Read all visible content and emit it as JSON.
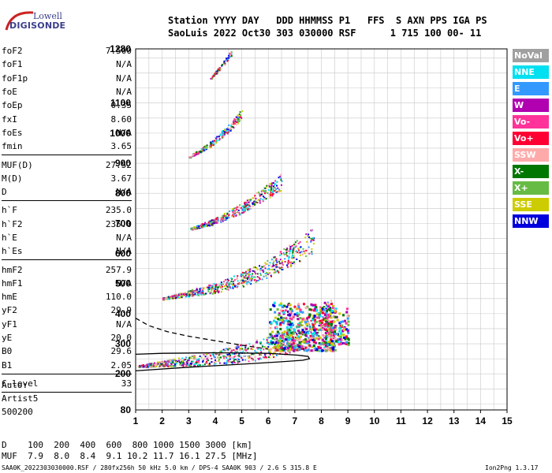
{
  "logo": {
    "line1": "Lowell",
    "line2": "DIGISONDE"
  },
  "header": {
    "line1": "Station YYYY DAY   DDD HHMMSS P1   FFS  S AXN PPS IGA PS",
    "line2": "SaoLuis 2022 Oct30 303 030000 RSF      1 715 100 00- 11"
  },
  "params": {
    "group1": [
      {
        "name": "foF2",
        "value": "7.500"
      },
      {
        "name": "foF1",
        "value": "N/A"
      },
      {
        "name": "foF1p",
        "value": "N/A"
      },
      {
        "name": "foE",
        "value": "N/A"
      },
      {
        "name": "foEp",
        "value": "0.35"
      },
      {
        "name": "fxI",
        "value": "8.60"
      },
      {
        "name": "foEs",
        "value": "N/A"
      },
      {
        "name": "fmin",
        "value": "3.65"
      }
    ],
    "group2": [
      {
        "name": "MUF(D)",
        "value": "27.52"
      },
      {
        "name": "M(D)",
        "value": "3.67"
      },
      {
        "name": "D",
        "value": "N/A"
      }
    ],
    "group3": [
      {
        "name": "h`F",
        "value": "235.0"
      },
      {
        "name": "h`F2",
        "value": "235.0"
      },
      {
        "name": "h`E",
        "value": "N/A"
      },
      {
        "name": "h`Es",
        "value": "N/A"
      }
    ],
    "group4": [
      {
        "name": "hmF2",
        "value": "257.9"
      },
      {
        "name": "hmF1",
        "value": "N/A"
      },
      {
        "name": "hmE",
        "value": "110.0"
      },
      {
        "name": "yF2",
        "value": "29.9"
      },
      {
        "name": "yF1",
        "value": "N/A"
      },
      {
        "name": "yE",
        "value": "20.0"
      },
      {
        "name": "B0",
        "value": "29.6"
      },
      {
        "name": "B1",
        "value": "2.05"
      }
    ],
    "group5": [
      {
        "name": "C-level",
        "value": "33"
      }
    ]
  },
  "auto": {
    "line1": "Auto:",
    "line2": "Artist5",
    "line3": "500200"
  },
  "legend": [
    {
      "label": "NoVal",
      "color": "#a0a0a0"
    },
    {
      "label": "NNE",
      "color": "#00e0f0"
    },
    {
      "label": "E",
      "color": "#3399ff"
    },
    {
      "label": "W",
      "color": "#b000b0"
    },
    {
      "label": "Vo-",
      "color": "#ff3399"
    },
    {
      "label": "Vo+",
      "color": "#ff0033"
    },
    {
      "label": "SSW",
      "color": "#ffaaaa"
    },
    {
      "label": "X-",
      "color": "#007700"
    },
    {
      "label": "X+",
      "color": "#66bb44"
    },
    {
      "label": "SSE",
      "color": "#cccc00"
    },
    {
      "label": "NNW",
      "color": "#0000dd"
    }
  ],
  "bottom": {
    "line1": "D    100  200  400  600  800 1000 1500 3000 [km]",
    "line2": "MUF  7.9  8.0  8.4  9.1 10.2 11.7 16.1 27.5 [MHz]"
  },
  "footer": {
    "left": "SAA0K_2022303030000.RSF / 280fx256h 50 kHz 5.0 km / DPS-4 SAA0K 903 / 2.6 S 315.8 E",
    "right": "Ion2Png 1.3.17"
  },
  "chart_data": {
    "type": "scatter",
    "x_axis": {
      "min": 1,
      "max": 15,
      "ticks": [
        1,
        2,
        3,
        4,
        5,
        6,
        7,
        8,
        9,
        10,
        11,
        12,
        13,
        14,
        15
      ]
    },
    "y_axis": {
      "min": 80,
      "max": 1280,
      "ticks": [
        80,
        200,
        300,
        400,
        500,
        600,
        700,
        800,
        900,
        1000,
        1100,
        1280
      ]
    },
    "grid": true,
    "traces": [
      {
        "name": "echo-1",
        "points": [
          [
            1.1,
            225
          ],
          [
            2,
            232
          ],
          [
            3,
            238
          ],
          [
            4,
            245
          ],
          [
            5,
            258
          ],
          [
            6,
            275
          ],
          [
            7,
            300
          ],
          [
            7.8,
            350
          ],
          [
            8.4,
            380
          ]
        ]
      },
      {
        "name": "echo-2",
        "points": [
          [
            2,
            450
          ],
          [
            3,
            465
          ],
          [
            4,
            480
          ],
          [
            5,
            505
          ],
          [
            6,
            540
          ],
          [
            7,
            590
          ],
          [
            7.7,
            630
          ]
        ]
      },
      {
        "name": "echo-3",
        "points": [
          [
            3,
            680
          ],
          [
            4,
            705
          ],
          [
            5,
            745
          ],
          [
            6,
            800
          ],
          [
            6.5,
            830
          ]
        ]
      },
      {
        "name": "echo-4",
        "points": [
          [
            3,
            920
          ],
          [
            3.8,
            960
          ],
          [
            4.6,
            1020
          ],
          [
            5,
            1060
          ]
        ]
      },
      {
        "name": "echo-5",
        "points": [
          [
            3.8,
            1180
          ],
          [
            4.2,
            1220
          ],
          [
            4.6,
            1265
          ]
        ]
      }
    ],
    "scatter_regions": [
      {
        "x": [
          6,
          8.5
        ],
        "y": [
          280,
          440
        ]
      },
      {
        "x": [
          8,
          9
        ],
        "y": [
          300,
          420
        ]
      }
    ],
    "model_curves": [
      {
        "style": "solid",
        "points": [
          [
            1,
            210
          ],
          [
            3,
            222
          ],
          [
            5,
            232
          ],
          [
            6.5,
            240
          ],
          [
            7.3,
            245
          ],
          [
            7.55,
            250
          ],
          [
            7.5,
            258
          ],
          [
            7.1,
            262
          ],
          [
            6,
            268
          ],
          [
            4,
            270
          ],
          [
            2,
            268
          ],
          [
            1,
            265
          ]
        ]
      },
      {
        "style": "dashed",
        "points": [
          [
            1,
            385
          ],
          [
            1.5,
            360
          ],
          [
            2.2,
            340
          ],
          [
            3,
            325
          ],
          [
            4,
            310
          ],
          [
            5,
            295
          ],
          [
            6,
            282
          ]
        ]
      }
    ]
  }
}
